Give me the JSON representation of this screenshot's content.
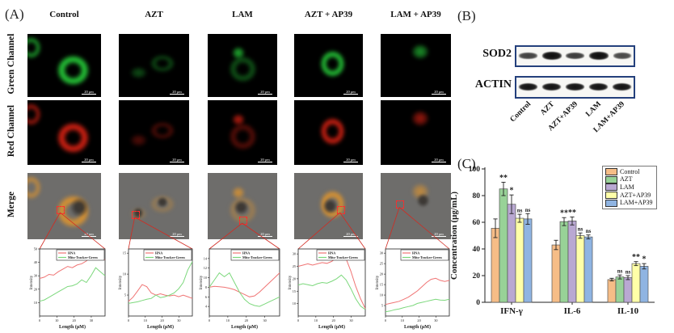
{
  "panel_a": {
    "label": "(A)",
    "columns": [
      "Control",
      "AZT",
      "LAM",
      "AZT + AP39",
      "LAM + AP39"
    ],
    "rows": [
      "Green Channel",
      "Red Channel",
      "Merge"
    ],
    "scale_bar_label": "20 μm",
    "profile_plots": {
      "legend": [
        {
          "name": "HNA",
          "color": "#f07474"
        },
        {
          "name": "Mito-Tracker-Green",
          "color": "#7cd87c"
        }
      ],
      "xlabel": "Length (μM)",
      "ylabel": "Intensity",
      "xticks": [
        0,
        10,
        20,
        30
      ],
      "xmax": 38,
      "plots": [
        {
          "column": "Control",
          "ymin": 0,
          "ymax": 50,
          "yticks": [
            10,
            20,
            30,
            40,
            50
          ],
          "red": [
            28,
            29,
            31,
            30.5,
            33,
            35,
            37,
            36,
            38,
            39,
            41,
            44,
            45,
            43,
            42
          ],
          "green": [
            11,
            12,
            14,
            16,
            18,
            20,
            22,
            22.5,
            24,
            27,
            25,
            30,
            36,
            33,
            30
          ]
        },
        {
          "column": "AZT",
          "ymin": 0,
          "ymax": 16,
          "yticks": [
            5,
            10,
            15
          ],
          "red": [
            3.5,
            4.5,
            6,
            7.5,
            7,
            5.5,
            5,
            5.3,
            5,
            4.8,
            5,
            4.6,
            5,
            4.6,
            4.2
          ],
          "green": [
            3,
            3.2,
            3.4,
            3.7,
            4,
            4.2,
            5,
            4.4,
            4.6,
            5,
            5.5,
            6.5,
            8,
            11,
            13
          ]
        },
        {
          "column": "LAM",
          "ymin": 2,
          "ymax": 16,
          "yticks": [
            4,
            6,
            8,
            10,
            12,
            14
          ],
          "red": [
            8,
            8.2,
            8.1,
            8,
            7.8,
            7.5,
            7,
            6.5,
            6,
            6.2,
            7,
            8,
            9,
            10,
            11
          ],
          "green": [
            8,
            9.5,
            11,
            10.2,
            11,
            9,
            7,
            5.5,
            4.6,
            4.2,
            4,
            4.5,
            5,
            5.5,
            6
          ]
        },
        {
          "column": "AZT + AP39",
          "ymin": 5,
          "ymax": 32,
          "yticks": [
            10,
            15,
            20,
            25,
            30
          ],
          "red": [
            25,
            25.5,
            26,
            25.5,
            26,
            26.5,
            26.2,
            27,
            28.5,
            30,
            28,
            23,
            17,
            12,
            8
          ],
          "green": [
            17.5,
            18,
            17.6,
            17.2,
            18,
            18.5,
            18.2,
            19,
            20,
            21.5,
            19.5,
            16,
            12,
            9,
            7.6
          ]
        },
        {
          "column": "LAM + AP39",
          "ymin": 0,
          "ymax": 32,
          "yticks": [
            5,
            10,
            15,
            20,
            25,
            30
          ],
          "red": [
            5.5,
            6,
            6.5,
            7,
            8,
            9,
            10.5,
            12,
            14,
            16,
            17.5,
            18,
            17,
            16.5,
            17
          ],
          "green": [
            2,
            2.4,
            3,
            3.4,
            4,
            4.5,
            5,
            6,
            6.5,
            7,
            7.5,
            8,
            7.6,
            7.5,
            8
          ]
        }
      ]
    }
  },
  "panel_b": {
    "label": "(B)",
    "blots": [
      {
        "name": "SOD2",
        "band_intensities": [
          0.55,
          1.0,
          0.6,
          1.0,
          0.5
        ]
      },
      {
        "name": "ACTIN",
        "band_intensities": [
          0.95,
          0.95,
          0.95,
          0.95,
          0.95
        ]
      }
    ],
    "lane_labels": [
      "Control",
      "AZT",
      "AZT+AP39",
      "LAM",
      "LAM+AP39"
    ],
    "box_border_color": "#24407c"
  },
  "panel_c": {
    "label": "(C)",
    "chart_data": {
      "type": "bar",
      "title": "",
      "xlabel": "",
      "ylabel": "Concentration (μg/mL)",
      "ylim": [
        0,
        100
      ],
      "yticks": [
        0,
        20,
        40,
        60,
        80,
        100
      ],
      "categories": [
        "IFN-γ",
        "IL-6",
        "IL-10"
      ],
      "legend_position": "top-right",
      "grid": false,
      "series": [
        {
          "name": "Control",
          "color": "#f6bd87",
          "values": [
            55.5,
            43,
            17
          ],
          "errors": [
            7,
            3.5,
            1
          ],
          "sig": [
            "",
            "",
            ""
          ]
        },
        {
          "name": "AZT",
          "color": "#98d297",
          "values": [
            85,
            60.5,
            19
          ],
          "errors": [
            5,
            3,
            1.5
          ],
          "sig": [
            "**",
            "**",
            "ns"
          ]
        },
        {
          "name": "LAM",
          "color": "#b9a8d2",
          "values": [
            73.5,
            61,
            18.5
          ],
          "errors": [
            7,
            3,
            1.5
          ],
          "sig": [
            "*",
            "**",
            "ns"
          ]
        },
        {
          "name": "AZT+AP39",
          "color": "#ffffa8",
          "values": [
            63,
            50,
            29
          ],
          "errors": [
            3,
            2,
            1.5
          ],
          "sig": [
            "ns",
            "ns",
            "**"
          ]
        },
        {
          "name": "LAM+AP39",
          "color": "#8fb4e2",
          "values": [
            62.5,
            49,
            27
          ],
          "errors": [
            4,
            1.5,
            2
          ],
          "sig": [
            "ns",
            "ns",
            "*"
          ]
        }
      ]
    }
  }
}
